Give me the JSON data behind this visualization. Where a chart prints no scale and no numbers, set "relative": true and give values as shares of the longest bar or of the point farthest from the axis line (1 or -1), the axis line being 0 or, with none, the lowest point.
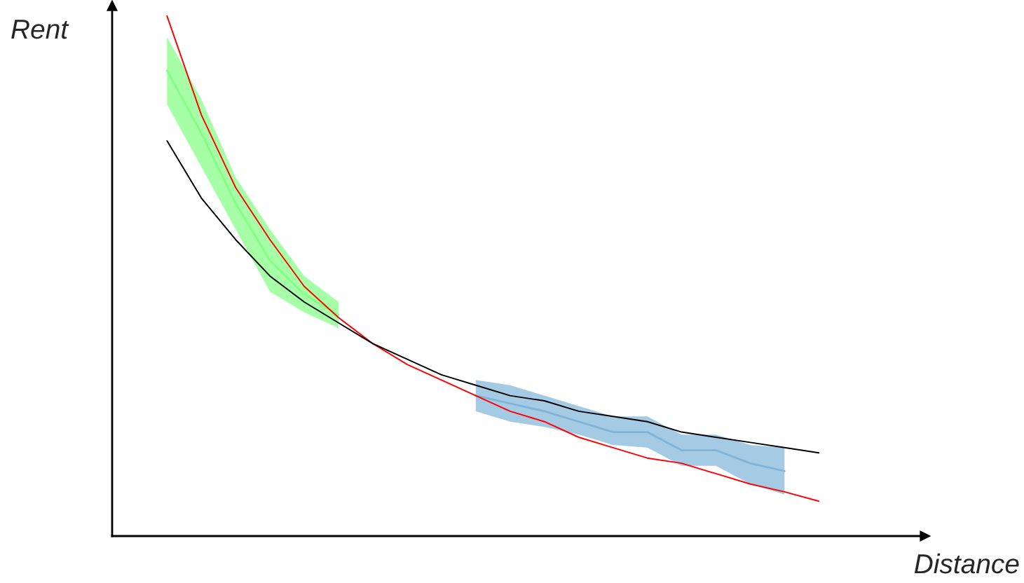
{
  "chart_data": {
    "type": "line",
    "relative": true,
    "xlabel": "Distance",
    "ylabel": "Rent",
    "marker": "none",
    "line_style": "solid",
    "categories": [
      null,
      null,
      null,
      null,
      null,
      null,
      null,
      null,
      null,
      null,
      null,
      null,
      null,
      null,
      null,
      null,
      null,
      null,
      null,
      null
    ],
    "series": [
      {
        "color": "#80ff80",
        "values": [
          0.895,
          0.775,
          0.64,
          0.53,
          0.465,
          0.425,
          null,
          null,
          null,
          null,
          null,
          null,
          null,
          null,
          null,
          null,
          null,
          null,
          null,
          null
        ],
        "lower": [
          0.83,
          0.71,
          0.59,
          0.47,
          0.43,
          0.4,
          null,
          null,
          null,
          null,
          null,
          null,
          null,
          null,
          null,
          null,
          null,
          null,
          null,
          null
        ],
        "upper": [
          0.96,
          0.84,
          0.69,
          0.59,
          0.5,
          0.45,
          null,
          null,
          null,
          null,
          null,
          null,
          null,
          null,
          null,
          null,
          null,
          null,
          null,
          null
        ]
      },
      {
        "color": "#7fb3d8",
        "values": [
          null,
          null,
          null,
          null,
          null,
          null,
          null,
          null,
          null,
          0.27,
          0.255,
          0.24,
          0.22,
          0.2,
          0.2,
          0.165,
          0.165,
          0.14,
          0.125,
          null
        ],
        "lower": [
          null,
          null,
          null,
          null,
          null,
          null,
          null,
          null,
          null,
          0.24,
          0.22,
          0.21,
          0.195,
          0.175,
          0.17,
          0.135,
          0.135,
          0.1,
          0.08,
          null
        ],
        "upper": [
          null,
          null,
          null,
          null,
          null,
          null,
          null,
          null,
          null,
          0.3,
          0.29,
          0.27,
          0.25,
          0.23,
          0.23,
          0.195,
          0.195,
          0.175,
          0.17,
          null
        ]
      },
      {
        "color": "#ff0000",
        "values": [
          1.0,
          0.81,
          0.67,
          0.57,
          0.48,
          0.42,
          0.37,
          0.33,
          0.3,
          0.27,
          0.24,
          0.22,
          0.19,
          0.17,
          0.15,
          0.14,
          0.12,
          0.1,
          0.085,
          0.067
        ]
      },
      {
        "color": "#000000",
        "values": [
          0.76,
          0.65,
          0.57,
          0.5,
          0.45,
          0.41,
          0.37,
          0.34,
          0.31,
          0.29,
          0.27,
          0.26,
          0.24,
          0.23,
          0.22,
          0.2,
          0.19,
          0.18,
          0.17,
          0.16
        ]
      }
    ]
  }
}
